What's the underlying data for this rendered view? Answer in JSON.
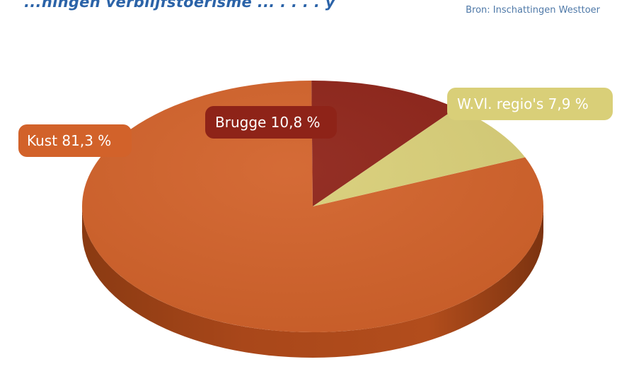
{
  "header": {
    "title_fragment": "...ningen verblijfstoerisme ... . . . . y",
    "source": "Bron: Inschattingen Westtoer"
  },
  "chart_data": {
    "type": "pie",
    "title": "",
    "categories": [
      "Kust",
      "Brugge",
      "W.Vl. regio's"
    ],
    "values": [
      81.3,
      10.8,
      7.9
    ],
    "labels": [
      "Kust 81,3 %",
      "Brugge 10,8 %",
      "W.Vl. regio's 7,9 %"
    ],
    "colors": [
      "#d2622a",
      "#8e2318",
      "#d9cf78"
    ],
    "legend": "none",
    "style": "3d"
  }
}
